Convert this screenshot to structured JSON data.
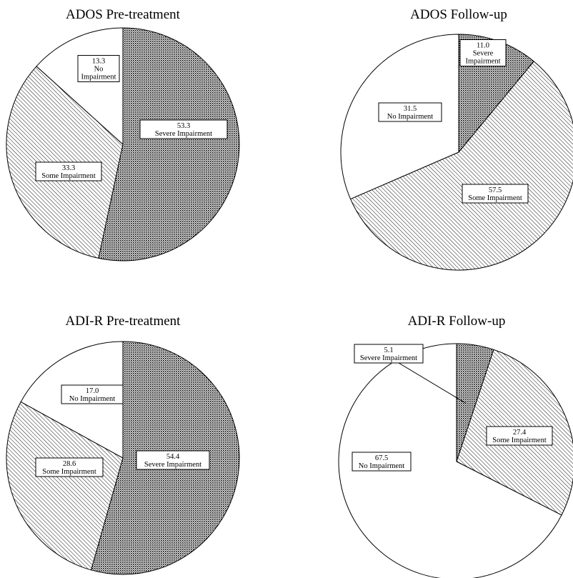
{
  "chart_data": [
    {
      "type": "pie",
      "title": "ADOS Pre-treatment",
      "slices": [
        {
          "name": "Severe Impairment",
          "value": 53.3,
          "label_lines": [
            "53.3",
            "Severe Impairment"
          ],
          "pattern": "crosshatch"
        },
        {
          "name": "Some Impairment",
          "value": 33.3,
          "label_lines": [
            "33.3",
            "Some Impairment"
          ],
          "pattern": "diagonal"
        },
        {
          "name": "No Impairment",
          "value": 13.3,
          "label_lines": [
            "13.3",
            "No",
            "Impairment"
          ],
          "pattern": "none"
        }
      ]
    },
    {
      "type": "pie",
      "title": "ADOS Follow-up",
      "slices": [
        {
          "name": "Severe Impairment",
          "value": 11.0,
          "label_lines": [
            "11.0",
            "Severe",
            "Impairment"
          ],
          "pattern": "crosshatch"
        },
        {
          "name": "Some Impairment",
          "value": 57.5,
          "label_lines": [
            "57.5",
            "Some Impairment"
          ],
          "pattern": "diagonal"
        },
        {
          "name": "No Impairment",
          "value": 31.5,
          "label_lines": [
            "31.5",
            "No Impairment"
          ],
          "pattern": "none"
        }
      ]
    },
    {
      "type": "pie",
      "title": "ADI-R Pre-treatment",
      "slices": [
        {
          "name": "Severe Impairment",
          "value": 54.4,
          "label_lines": [
            "54.4",
            "Severe Impairment"
          ],
          "pattern": "crosshatch"
        },
        {
          "name": "Some Impairment",
          "value": 28.6,
          "label_lines": [
            "28.6",
            "Some Impairment"
          ],
          "pattern": "diagonal"
        },
        {
          "name": "No Impairment",
          "value": 17.0,
          "label_lines": [
            "17.0",
            "No Impairment"
          ],
          "pattern": "none"
        }
      ]
    },
    {
      "type": "pie",
      "title": "ADI-R Follow-up",
      "slices": [
        {
          "name": "Severe Impairment",
          "value": 5.1,
          "label_lines": [
            "5.1",
            "Severe Impairment"
          ],
          "pattern": "crosshatch"
        },
        {
          "name": "Some Impairment",
          "value": 27.4,
          "label_lines": [
            "27.4",
            "Some Impairment"
          ],
          "pattern": "diagonal"
        },
        {
          "name": "No Impairment",
          "value": 67.5,
          "label_lines": [
            "67.5",
            "No Impairment"
          ],
          "pattern": "none"
        }
      ]
    }
  ]
}
